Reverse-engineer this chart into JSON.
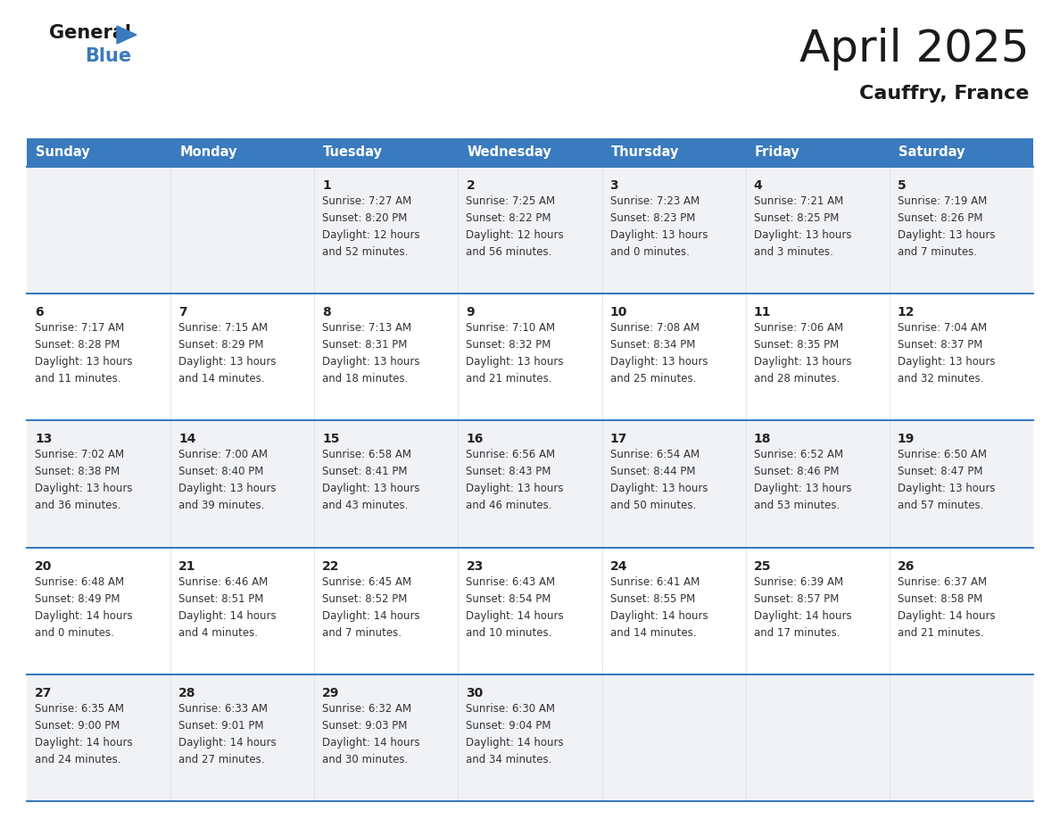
{
  "title": "April 2025",
  "subtitle": "Cauffry, France",
  "header_bg_color": "#3a7abf",
  "header_text_color": "#ffffff",
  "day_names": [
    "Sunday",
    "Monday",
    "Tuesday",
    "Wednesday",
    "Thursday",
    "Friday",
    "Saturday"
  ],
  "bg_color": "#ffffff",
  "cell_bg_even": "#f0f2f5",
  "cell_bg_odd": "#ffffff",
  "row_line_color": "#3a7abf",
  "text_color": "#333333",
  "date_color": "#222222",
  "weeks": [
    [
      {
        "day": null,
        "text": ""
      },
      {
        "day": null,
        "text": ""
      },
      {
        "day": 1,
        "text": "Sunrise: 7:27 AM\nSunset: 8:20 PM\nDaylight: 12 hours\nand 52 minutes."
      },
      {
        "day": 2,
        "text": "Sunrise: 7:25 AM\nSunset: 8:22 PM\nDaylight: 12 hours\nand 56 minutes."
      },
      {
        "day": 3,
        "text": "Sunrise: 7:23 AM\nSunset: 8:23 PM\nDaylight: 13 hours\nand 0 minutes."
      },
      {
        "day": 4,
        "text": "Sunrise: 7:21 AM\nSunset: 8:25 PM\nDaylight: 13 hours\nand 3 minutes."
      },
      {
        "day": 5,
        "text": "Sunrise: 7:19 AM\nSunset: 8:26 PM\nDaylight: 13 hours\nand 7 minutes."
      }
    ],
    [
      {
        "day": 6,
        "text": "Sunrise: 7:17 AM\nSunset: 8:28 PM\nDaylight: 13 hours\nand 11 minutes."
      },
      {
        "day": 7,
        "text": "Sunrise: 7:15 AM\nSunset: 8:29 PM\nDaylight: 13 hours\nand 14 minutes."
      },
      {
        "day": 8,
        "text": "Sunrise: 7:13 AM\nSunset: 8:31 PM\nDaylight: 13 hours\nand 18 minutes."
      },
      {
        "day": 9,
        "text": "Sunrise: 7:10 AM\nSunset: 8:32 PM\nDaylight: 13 hours\nand 21 minutes."
      },
      {
        "day": 10,
        "text": "Sunrise: 7:08 AM\nSunset: 8:34 PM\nDaylight: 13 hours\nand 25 minutes."
      },
      {
        "day": 11,
        "text": "Sunrise: 7:06 AM\nSunset: 8:35 PM\nDaylight: 13 hours\nand 28 minutes."
      },
      {
        "day": 12,
        "text": "Sunrise: 7:04 AM\nSunset: 8:37 PM\nDaylight: 13 hours\nand 32 minutes."
      }
    ],
    [
      {
        "day": 13,
        "text": "Sunrise: 7:02 AM\nSunset: 8:38 PM\nDaylight: 13 hours\nand 36 minutes."
      },
      {
        "day": 14,
        "text": "Sunrise: 7:00 AM\nSunset: 8:40 PM\nDaylight: 13 hours\nand 39 minutes."
      },
      {
        "day": 15,
        "text": "Sunrise: 6:58 AM\nSunset: 8:41 PM\nDaylight: 13 hours\nand 43 minutes."
      },
      {
        "day": 16,
        "text": "Sunrise: 6:56 AM\nSunset: 8:43 PM\nDaylight: 13 hours\nand 46 minutes."
      },
      {
        "day": 17,
        "text": "Sunrise: 6:54 AM\nSunset: 8:44 PM\nDaylight: 13 hours\nand 50 minutes."
      },
      {
        "day": 18,
        "text": "Sunrise: 6:52 AM\nSunset: 8:46 PM\nDaylight: 13 hours\nand 53 minutes."
      },
      {
        "day": 19,
        "text": "Sunrise: 6:50 AM\nSunset: 8:47 PM\nDaylight: 13 hours\nand 57 minutes."
      }
    ],
    [
      {
        "day": 20,
        "text": "Sunrise: 6:48 AM\nSunset: 8:49 PM\nDaylight: 14 hours\nand 0 minutes."
      },
      {
        "day": 21,
        "text": "Sunrise: 6:46 AM\nSunset: 8:51 PM\nDaylight: 14 hours\nand 4 minutes."
      },
      {
        "day": 22,
        "text": "Sunrise: 6:45 AM\nSunset: 8:52 PM\nDaylight: 14 hours\nand 7 minutes."
      },
      {
        "day": 23,
        "text": "Sunrise: 6:43 AM\nSunset: 8:54 PM\nDaylight: 14 hours\nand 10 minutes."
      },
      {
        "day": 24,
        "text": "Sunrise: 6:41 AM\nSunset: 8:55 PM\nDaylight: 14 hours\nand 14 minutes."
      },
      {
        "day": 25,
        "text": "Sunrise: 6:39 AM\nSunset: 8:57 PM\nDaylight: 14 hours\nand 17 minutes."
      },
      {
        "day": 26,
        "text": "Sunrise: 6:37 AM\nSunset: 8:58 PM\nDaylight: 14 hours\nand 21 minutes."
      }
    ],
    [
      {
        "day": 27,
        "text": "Sunrise: 6:35 AM\nSunset: 9:00 PM\nDaylight: 14 hours\nand 24 minutes."
      },
      {
        "day": 28,
        "text": "Sunrise: 6:33 AM\nSunset: 9:01 PM\nDaylight: 14 hours\nand 27 minutes."
      },
      {
        "day": 29,
        "text": "Sunrise: 6:32 AM\nSunset: 9:03 PM\nDaylight: 14 hours\nand 30 minutes."
      },
      {
        "day": 30,
        "text": "Sunrise: 6:30 AM\nSunset: 9:04 PM\nDaylight: 14 hours\nand 34 minutes."
      },
      {
        "day": null,
        "text": ""
      },
      {
        "day": null,
        "text": ""
      },
      {
        "day": null,
        "text": ""
      }
    ]
  ]
}
